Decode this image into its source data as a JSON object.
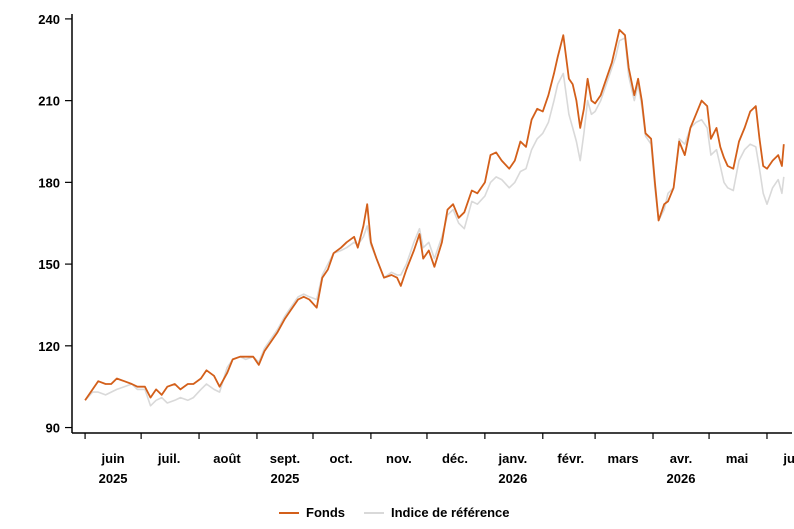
{
  "chart_data": {
    "type": "line",
    "title": "",
    "xlabel": "",
    "ylabel": "",
    "ylim": [
      88,
      244
    ],
    "y_ticks": [
      90,
      120,
      150,
      180,
      210,
      240
    ],
    "x_ticks": [
      {
        "label": "juin",
        "year": "2025",
        "date": "2025-06-01"
      },
      {
        "label": "juil.",
        "year": "",
        "date": "2025-07-01"
      },
      {
        "label": "août",
        "year": "",
        "date": "2025-08-01"
      },
      {
        "label": "sept.",
        "year": "2025",
        "date": "2025-09-01"
      },
      {
        "label": "oct.",
        "year": "",
        "date": "2025-10-01"
      },
      {
        "label": "nov.",
        "year": "",
        "date": "2025-11-01"
      },
      {
        "label": "déc.",
        "year": "",
        "date": "2025-12-01"
      },
      {
        "label": "janv.",
        "year": "2026",
        "date": "2026-01-01"
      },
      {
        "label": "févr.",
        "year": "",
        "date": "2026-02-01"
      },
      {
        "label": "mars",
        "year": "",
        "date": "2026-03-01"
      },
      {
        "label": "avr.",
        "year": "2026",
        "date": "2026-04-01"
      },
      {
        "label": "mai",
        "year": "",
        "date": "2026-05-01"
      },
      {
        "label": "juin",
        "year": "",
        "date": "2026-06-01"
      }
    ],
    "legend_position": "bottom-center",
    "series": [
      {
        "name": "Fonds",
        "color": "#d35f1a",
        "points": [
          [
            "2025-06-01",
            100
          ],
          [
            "2025-06-05",
            104
          ],
          [
            "2025-06-08",
            107
          ],
          [
            "2025-06-12",
            106
          ],
          [
            "2025-06-15",
            106
          ],
          [
            "2025-06-18",
            108
          ],
          [
            "2025-06-22",
            107
          ],
          [
            "2025-06-26",
            106
          ],
          [
            "2025-06-29",
            105
          ],
          [
            "2025-07-03",
            105
          ],
          [
            "2025-07-06",
            101
          ],
          [
            "2025-07-09",
            104
          ],
          [
            "2025-07-12",
            102
          ],
          [
            "2025-07-15",
            105
          ],
          [
            "2025-07-19",
            106
          ],
          [
            "2025-07-22",
            104
          ],
          [
            "2025-07-26",
            106
          ],
          [
            "2025-07-29",
            106
          ],
          [
            "2025-08-02",
            108
          ],
          [
            "2025-08-05",
            111
          ],
          [
            "2025-08-09",
            109
          ],
          [
            "2025-08-12",
            105
          ],
          [
            "2025-08-16",
            110
          ],
          [
            "2025-08-19",
            115
          ],
          [
            "2025-08-23",
            116
          ],
          [
            "2025-08-26",
            116
          ],
          [
            "2025-08-30",
            116
          ],
          [
            "2025-09-02",
            113
          ],
          [
            "2025-09-05",
            118
          ],
          [
            "2025-09-09",
            122
          ],
          [
            "2025-09-12",
            125
          ],
          [
            "2025-09-16",
            130
          ],
          [
            "2025-09-19",
            133
          ],
          [
            "2025-09-23",
            137
          ],
          [
            "2025-09-26",
            138
          ],
          [
            "2025-09-29",
            137
          ],
          [
            "2025-10-03",
            134
          ],
          [
            "2025-10-06",
            145
          ],
          [
            "2025-10-09",
            148
          ],
          [
            "2025-10-12",
            154
          ],
          [
            "2025-10-16",
            156
          ],
          [
            "2025-10-19",
            158
          ],
          [
            "2025-10-23",
            160
          ],
          [
            "2025-10-25",
            156
          ],
          [
            "2025-10-28",
            164
          ],
          [
            "2025-10-30",
            172
          ],
          [
            "2025-11-01",
            158
          ],
          [
            "2025-11-04",
            152
          ],
          [
            "2025-11-08",
            145
          ],
          [
            "2025-11-12",
            146
          ],
          [
            "2025-11-15",
            145
          ],
          [
            "2025-11-17",
            142
          ],
          [
            "2025-11-20",
            148
          ],
          [
            "2025-11-24",
            155
          ],
          [
            "2025-11-27",
            161
          ],
          [
            "2025-11-29",
            152
          ],
          [
            "2025-12-02",
            155
          ],
          [
            "2025-12-05",
            149
          ],
          [
            "2025-12-09",
            158
          ],
          [
            "2025-12-12",
            170
          ],
          [
            "2025-12-15",
            172
          ],
          [
            "2025-12-18",
            167
          ],
          [
            "2025-12-21",
            169
          ],
          [
            "2025-12-25",
            177
          ],
          [
            "2025-12-28",
            176
          ],
          [
            "2026-01-01",
            180
          ],
          [
            "2026-01-04",
            190
          ],
          [
            "2026-01-07",
            191
          ],
          [
            "2026-01-10",
            188
          ],
          [
            "2026-01-14",
            185
          ],
          [
            "2026-01-17",
            188
          ],
          [
            "2026-01-20",
            195
          ],
          [
            "2026-01-23",
            193
          ],
          [
            "2026-01-26",
            203
          ],
          [
            "2026-01-29",
            207
          ],
          [
            "2026-02-01",
            206
          ],
          [
            "2026-02-04",
            212
          ],
          [
            "2026-02-07",
            220
          ],
          [
            "2026-02-09",
            226
          ],
          [
            "2026-02-12",
            234
          ],
          [
            "2026-02-15",
            218
          ],
          [
            "2026-02-17",
            216
          ],
          [
            "2026-02-19",
            210
          ],
          [
            "2026-02-21",
            200
          ],
          [
            "2026-02-23",
            207
          ],
          [
            "2026-02-25",
            218
          ],
          [
            "2026-02-27",
            210
          ],
          [
            "2026-03-01",
            209
          ],
          [
            "2026-03-04",
            212
          ],
          [
            "2026-03-07",
            218
          ],
          [
            "2026-03-10",
            224
          ],
          [
            "2026-03-12",
            230
          ],
          [
            "2026-03-14",
            236
          ],
          [
            "2026-03-17",
            234
          ],
          [
            "2026-03-19",
            222
          ],
          [
            "2026-03-22",
            212
          ],
          [
            "2026-03-24",
            218
          ],
          [
            "2026-03-26",
            210
          ],
          [
            "2026-03-28",
            198
          ],
          [
            "2026-03-31",
            196
          ],
          [
            "2026-04-02",
            180
          ],
          [
            "2026-04-04",
            166
          ],
          [
            "2026-04-07",
            172
          ],
          [
            "2026-04-09",
            173
          ],
          [
            "2026-04-12",
            178
          ],
          [
            "2026-04-15",
            195
          ],
          [
            "2026-04-18",
            190
          ],
          [
            "2026-04-21",
            200
          ],
          [
            "2026-04-24",
            205
          ],
          [
            "2026-04-27",
            210
          ],
          [
            "2026-04-30",
            208
          ],
          [
            "2026-05-02",
            196
          ],
          [
            "2026-05-05",
            200
          ],
          [
            "2026-05-07",
            193
          ],
          [
            "2026-05-09",
            189
          ],
          [
            "2026-05-11",
            186
          ],
          [
            "2026-05-14",
            185
          ],
          [
            "2026-05-17",
            195
          ],
          [
            "2026-05-20",
            200
          ],
          [
            "2026-05-23",
            206
          ],
          [
            "2026-05-26",
            208
          ],
          [
            "2026-05-28",
            196
          ],
          [
            "2026-05-30",
            186
          ],
          [
            "2026-06-01",
            185
          ],
          [
            "2026-06-04",
            188
          ],
          [
            "2026-06-07",
            190
          ],
          [
            "2026-06-09",
            186
          ],
          [
            "2026-06-10",
            194
          ]
        ]
      },
      {
        "name": "Indice de référence",
        "color": "#d9d9d9",
        "points": [
          [
            "2025-06-01",
            100
          ],
          [
            "2025-06-05",
            103
          ],
          [
            "2025-06-08",
            103
          ],
          [
            "2025-06-12",
            102
          ],
          [
            "2025-06-15",
            103
          ],
          [
            "2025-06-18",
            104
          ],
          [
            "2025-06-22",
            105
          ],
          [
            "2025-06-26",
            106
          ],
          [
            "2025-06-29",
            104
          ],
          [
            "2025-07-03",
            104
          ],
          [
            "2025-07-06",
            98
          ],
          [
            "2025-07-09",
            100
          ],
          [
            "2025-07-12",
            101
          ],
          [
            "2025-07-15",
            99
          ],
          [
            "2025-07-19",
            100
          ],
          [
            "2025-07-22",
            101
          ],
          [
            "2025-07-26",
            100
          ],
          [
            "2025-07-29",
            101
          ],
          [
            "2025-08-02",
            104
          ],
          [
            "2025-08-05",
            106
          ],
          [
            "2025-08-09",
            104
          ],
          [
            "2025-08-12",
            103
          ],
          [
            "2025-08-16",
            112
          ],
          [
            "2025-08-19",
            115
          ],
          [
            "2025-08-23",
            116
          ],
          [
            "2025-08-26",
            115
          ],
          [
            "2025-08-30",
            116
          ],
          [
            "2025-09-02",
            114
          ],
          [
            "2025-09-05",
            119
          ],
          [
            "2025-09-09",
            123
          ],
          [
            "2025-09-12",
            126
          ],
          [
            "2025-09-16",
            131
          ],
          [
            "2025-09-19",
            134
          ],
          [
            "2025-09-23",
            138
          ],
          [
            "2025-09-26",
            139
          ],
          [
            "2025-09-29",
            138
          ],
          [
            "2025-10-03",
            137
          ],
          [
            "2025-10-06",
            146
          ],
          [
            "2025-10-09",
            150
          ],
          [
            "2025-10-12",
            154
          ],
          [
            "2025-10-16",
            155
          ],
          [
            "2025-10-19",
            156
          ],
          [
            "2025-10-23",
            158
          ],
          [
            "2025-10-25",
            157
          ],
          [
            "2025-10-28",
            160
          ],
          [
            "2025-10-30",
            164
          ],
          [
            "2025-11-01",
            157
          ],
          [
            "2025-11-04",
            152
          ],
          [
            "2025-11-08",
            145
          ],
          [
            "2025-11-12",
            147
          ],
          [
            "2025-11-15",
            146
          ],
          [
            "2025-11-17",
            146
          ],
          [
            "2025-11-20",
            150
          ],
          [
            "2025-11-24",
            158
          ],
          [
            "2025-11-27",
            163
          ],
          [
            "2025-11-29",
            156
          ],
          [
            "2025-12-02",
            158
          ],
          [
            "2025-12-05",
            152
          ],
          [
            "2025-12-09",
            160
          ],
          [
            "2025-12-12",
            168
          ],
          [
            "2025-12-15",
            170
          ],
          [
            "2025-12-18",
            165
          ],
          [
            "2025-12-21",
            163
          ],
          [
            "2025-12-25",
            173
          ],
          [
            "2025-12-28",
            172
          ],
          [
            "2026-01-01",
            175
          ],
          [
            "2026-01-04",
            180
          ],
          [
            "2026-01-07",
            182
          ],
          [
            "2026-01-10",
            181
          ],
          [
            "2026-01-14",
            178
          ],
          [
            "2026-01-17",
            180
          ],
          [
            "2026-01-20",
            184
          ],
          [
            "2026-01-23",
            185
          ],
          [
            "2026-01-26",
            192
          ],
          [
            "2026-01-29",
            196
          ],
          [
            "2026-02-01",
            198
          ],
          [
            "2026-02-04",
            202
          ],
          [
            "2026-02-07",
            210
          ],
          [
            "2026-02-09",
            216
          ],
          [
            "2026-02-12",
            220
          ],
          [
            "2026-02-15",
            205
          ],
          [
            "2026-02-17",
            200
          ],
          [
            "2026-02-19",
            195
          ],
          [
            "2026-02-21",
            188
          ],
          [
            "2026-02-23",
            198
          ],
          [
            "2026-02-25",
            210
          ],
          [
            "2026-02-27",
            205
          ],
          [
            "2026-03-01",
            206
          ],
          [
            "2026-03-04",
            210
          ],
          [
            "2026-03-07",
            216
          ],
          [
            "2026-03-10",
            222
          ],
          [
            "2026-03-12",
            226
          ],
          [
            "2026-03-14",
            232
          ],
          [
            "2026-03-17",
            233
          ],
          [
            "2026-03-19",
            219
          ],
          [
            "2026-03-22",
            210
          ],
          [
            "2026-03-24",
            216
          ],
          [
            "2026-03-26",
            208
          ],
          [
            "2026-03-28",
            197
          ],
          [
            "2026-03-31",
            194
          ],
          [
            "2026-04-02",
            178
          ],
          [
            "2026-04-04",
            166
          ],
          [
            "2026-04-07",
            170
          ],
          [
            "2026-04-09",
            176
          ],
          [
            "2026-04-12",
            178
          ],
          [
            "2026-04-15",
            196
          ],
          [
            "2026-04-18",
            194
          ],
          [
            "2026-04-21",
            200
          ],
          [
            "2026-04-24",
            202
          ],
          [
            "2026-04-27",
            203
          ],
          [
            "2026-04-30",
            200
          ],
          [
            "2026-05-02",
            190
          ],
          [
            "2026-05-05",
            192
          ],
          [
            "2026-05-07",
            186
          ],
          [
            "2026-05-09",
            180
          ],
          [
            "2026-05-11",
            178
          ],
          [
            "2026-05-14",
            177
          ],
          [
            "2026-05-17",
            188
          ],
          [
            "2026-05-20",
            192
          ],
          [
            "2026-05-23",
            194
          ],
          [
            "2026-05-26",
            193
          ],
          [
            "2026-05-28",
            185
          ],
          [
            "2026-05-30",
            176
          ],
          [
            "2026-06-01",
            172
          ],
          [
            "2026-06-04",
            178
          ],
          [
            "2026-06-07",
            181
          ],
          [
            "2026-06-09",
            176
          ],
          [
            "2026-06-10",
            182
          ]
        ]
      }
    ]
  }
}
